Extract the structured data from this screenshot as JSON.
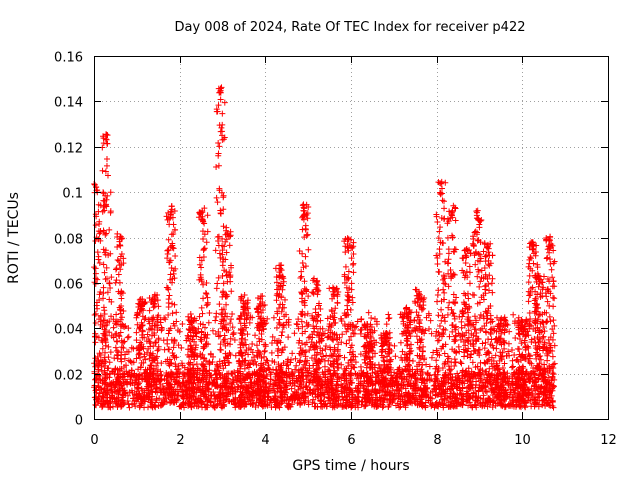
{
  "chart_data": {
    "type": "scatter",
    "title": "Day 008 of 2024, Rate Of TEC Index for receiver p422",
    "xlabel": "GPS time / hours",
    "ylabel": "ROTI / TECUs",
    "xlim": [
      0,
      12
    ],
    "ylim": [
      0,
      0.16
    ],
    "x_ticks": [
      0,
      2,
      4,
      6,
      8,
      10,
      12
    ],
    "x_tick_labels": [
      "0",
      "2",
      "4",
      "6",
      "8",
      "10",
      "12"
    ],
    "y_ticks": [
      0,
      0.02,
      0.04,
      0.06,
      0.08,
      0.1,
      0.12,
      0.14,
      0.16
    ],
    "y_tick_labels": [
      "0",
      "0.02",
      "0.04",
      "0.06",
      "0.08",
      "0.1",
      "0.12",
      "0.14",
      "0.16"
    ],
    "grid": true,
    "marker": "+",
    "color": "#ff0000",
    "series": [
      {
        "name": "p422",
        "x_range": [
          0,
          10.75
        ],
        "baseline_band": [
          0.005,
          0.02
        ],
        "notes": "dense cloud of points with a baseline between 0.005 and 0.02 TECU/min",
        "spikes": [
          {
            "x": 0.05,
            "peak": 0.105
          },
          {
            "x": 0.3,
            "peak": 0.126
          },
          {
            "x": 0.6,
            "peak": 0.082
          },
          {
            "x": 1.1,
            "peak": 0.054
          },
          {
            "x": 1.4,
            "peak": 0.055
          },
          {
            "x": 1.8,
            "peak": 0.094
          },
          {
            "x": 2.3,
            "peak": 0.045
          },
          {
            "x": 2.55,
            "peak": 0.093
          },
          {
            "x": 2.95,
            "peak": 0.147
          },
          {
            "x": 3.1,
            "peak": 0.085
          },
          {
            "x": 3.5,
            "peak": 0.055
          },
          {
            "x": 3.9,
            "peak": 0.055
          },
          {
            "x": 4.35,
            "peak": 0.068
          },
          {
            "x": 4.9,
            "peak": 0.095
          },
          {
            "x": 5.2,
            "peak": 0.062
          },
          {
            "x": 5.6,
            "peak": 0.058
          },
          {
            "x": 5.95,
            "peak": 0.08
          },
          {
            "x": 6.4,
            "peak": 0.042
          },
          {
            "x": 6.8,
            "peak": 0.038
          },
          {
            "x": 7.3,
            "peak": 0.05
          },
          {
            "x": 7.6,
            "peak": 0.058
          },
          {
            "x": 8.1,
            "peak": 0.105
          },
          {
            "x": 8.35,
            "peak": 0.094
          },
          {
            "x": 8.7,
            "peak": 0.075
          },
          {
            "x": 8.95,
            "peak": 0.092
          },
          {
            "x": 9.2,
            "peak": 0.078
          },
          {
            "x": 9.5,
            "peak": 0.045
          },
          {
            "x": 10.0,
            "peak": 0.044
          },
          {
            "x": 10.25,
            "peak": 0.078
          },
          {
            "x": 10.4,
            "peak": 0.064
          },
          {
            "x": 10.65,
            "peak": 0.081
          }
        ]
      }
    ]
  }
}
